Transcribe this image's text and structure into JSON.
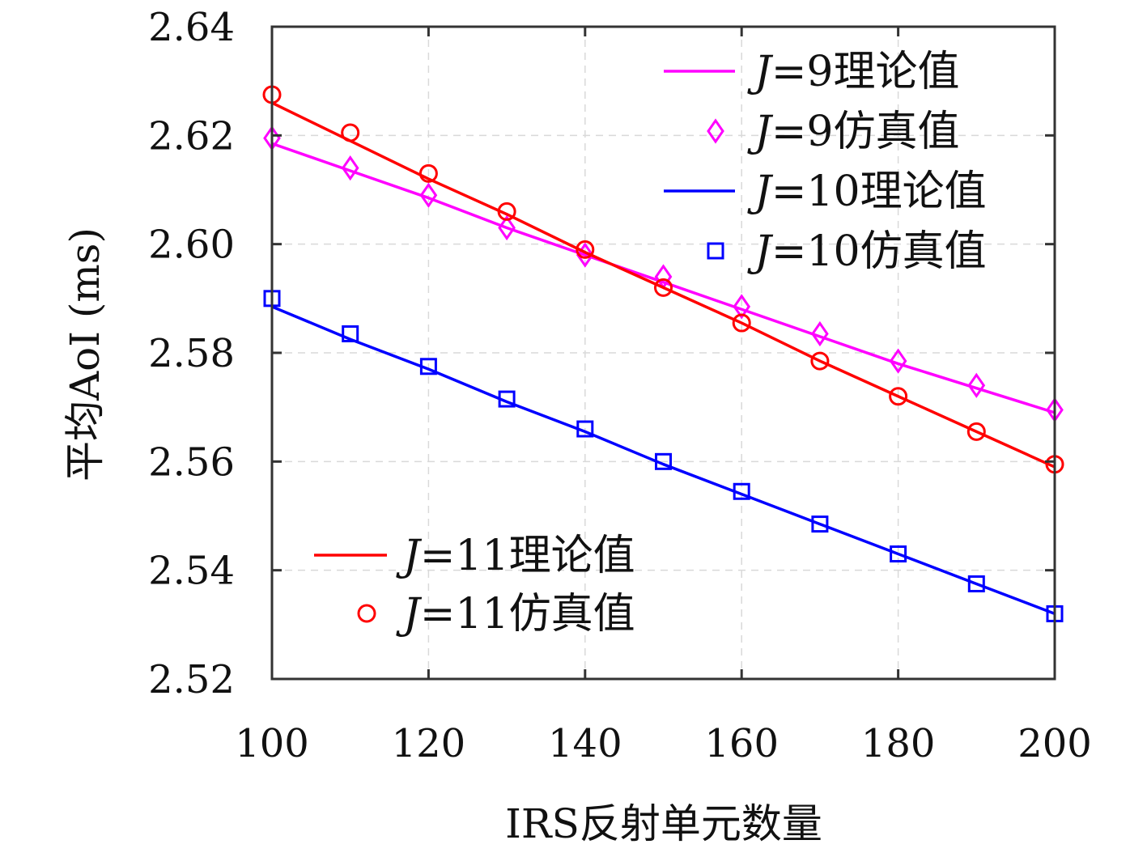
{
  "chart_data": {
    "type": "line",
    "xlabel": "IRS反射单元数量",
    "ylabel": "平均AoI (ms)",
    "xlim": [
      100,
      200
    ],
    "ylim": [
      2.52,
      2.64
    ],
    "xticks": [
      100,
      120,
      140,
      160,
      180,
      200
    ],
    "yticks": [
      2.52,
      2.54,
      2.56,
      2.58,
      2.6,
      2.62,
      2.64
    ],
    "xtick_labels": [
      "100",
      "120",
      "140",
      "160",
      "180",
      "200"
    ],
    "ytick_labels": [
      "2.52",
      "2.54",
      "2.56",
      "2.58",
      "2.60",
      "2.62",
      "2.64"
    ],
    "grid": true,
    "x": [
      100,
      110,
      120,
      130,
      140,
      150,
      160,
      170,
      180,
      190,
      200
    ],
    "series": [
      {
        "name": "J=9理论值",
        "kind": "line",
        "color": "#ff00ff",
        "values": [
          2.6185,
          2.6135,
          2.6085,
          2.603,
          2.598,
          2.593,
          2.588,
          2.583,
          2.578,
          2.5735,
          2.569
        ]
      },
      {
        "name": "J=9仿真值",
        "kind": "marker",
        "marker": "diamond",
        "color": "#ff00ff",
        "values": [
          2.6195,
          2.614,
          2.609,
          2.603,
          2.598,
          2.594,
          2.5885,
          2.5835,
          2.5785,
          2.574,
          2.5695
        ]
      },
      {
        "name": "J=10理论值",
        "kind": "line",
        "color": "#0000ff",
        "values": [
          2.5885,
          2.5825,
          2.577,
          2.571,
          2.5655,
          2.5595,
          2.554,
          2.5485,
          2.543,
          2.5375,
          2.532
        ]
      },
      {
        "name": "J=10仿真值",
        "kind": "marker",
        "marker": "square",
        "color": "#0000ff",
        "values": [
          2.59,
          2.5835,
          2.5775,
          2.5715,
          2.566,
          2.56,
          2.5545,
          2.5485,
          2.543,
          2.5375,
          2.532
        ]
      },
      {
        "name": "J=11理论值",
        "kind": "line",
        "color": "#ff0000",
        "values": [
          2.626,
          2.619,
          2.612,
          2.6055,
          2.5985,
          2.592,
          2.5855,
          2.5785,
          2.572,
          2.5655,
          2.559
        ]
      },
      {
        "name": "J=11仿真值",
        "kind": "marker",
        "marker": "circle",
        "color": "#ff0000",
        "values": [
          2.6275,
          2.6205,
          2.613,
          2.606,
          2.599,
          2.592,
          2.5855,
          2.5785,
          2.572,
          2.5655,
          2.5595
        ]
      }
    ],
    "legends": [
      {
        "placement": "top-right",
        "entries": [
          {
            "prefix": "J",
            "suffix": "=9理论值",
            "series": 0
          },
          {
            "prefix": "J",
            "suffix": "=9仿真值",
            "series": 1
          },
          {
            "prefix": "J",
            "suffix": "=10理论值",
            "series": 2
          },
          {
            "prefix": "J",
            "suffix": "=10仿真值",
            "series": 3
          }
        ]
      },
      {
        "placement": "bottom-left",
        "entries": [
          {
            "prefix": "J",
            "suffix": "=11理论值",
            "series": 4
          },
          {
            "prefix": "J",
            "suffix": "=11仿真值",
            "series": 5
          }
        ]
      }
    ]
  }
}
